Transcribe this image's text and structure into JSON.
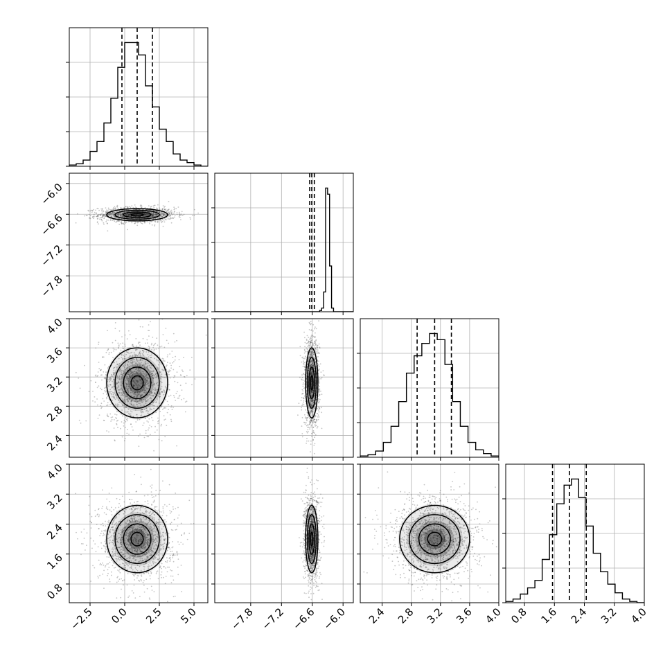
{
  "chart_data": {
    "type": "corner",
    "grid": true,
    "grid_color": "#b0b0b0",
    "line_color": "#000000",
    "contour_fill": "#000000",
    "scatter_color": "#555555",
    "parameters": [
      {
        "range": [
          -4.0,
          6.0
        ],
        "quantiles": [
          -0.2,
          0.9,
          2.0
        ],
        "median": 0.9,
        "sigma": 1.1,
        "ticks": [
          -2.5,
          0.0,
          2.5,
          5.0
        ],
        "tick_labels": [
          "−2.5",
          "0.0",
          "2.5",
          "5.0"
        ]
      },
      {
        "range": [
          -8.5,
          -5.8
        ],
        "quantiles": [
          -6.65,
          -6.61,
          -6.56
        ],
        "median": -6.61,
        "sigma": 0.06,
        "ticks": [
          -7.8,
          -7.2,
          -6.6,
          -6.0
        ],
        "tick_labels": [
          "−7.8",
          "−7.2",
          "−6.6",
          "−6.0"
        ]
      },
      {
        "range": [
          2.1,
          4.0
        ],
        "quantiles": [
          2.88,
          3.12,
          3.35
        ],
        "median": 3.12,
        "sigma": 0.24,
        "ticks": [
          2.4,
          2.8,
          3.2,
          3.6,
          4.0
        ],
        "tick_labels": [
          "2.4",
          "2.8",
          "3.2",
          "3.6",
          "4.0"
        ]
      },
      {
        "range": [
          0.3,
          4.0
        ],
        "quantiles": [
          1.55,
          2.0,
          2.45
        ],
        "median": 2.0,
        "sigma": 0.45,
        "ticks": [
          0.8,
          1.6,
          2.4,
          3.2,
          4.0
        ],
        "tick_labels": [
          "0.8",
          "1.6",
          "2.4",
          "3.2",
          "4.0"
        ]
      }
    ],
    "histograms": [
      {
        "param": 0,
        "counts": [
          1,
          2,
          5,
          12,
          20,
          35,
          55,
          80,
          100,
          100,
          90,
          65,
          48,
          30,
          20,
          10,
          5,
          3,
          1,
          0
        ]
      },
      {
        "param": 1,
        "counts": [
          0,
          0,
          0,
          0,
          0,
          0,
          0,
          0,
          0,
          0,
          0,
          0,
          0,
          0,
          0,
          0,
          0,
          0,
          0,
          0,
          0,
          0,
          0,
          0,
          0,
          0,
          0,
          0,
          0,
          0,
          0,
          0,
          0,
          0,
          0,
          0,
          0,
          0,
          0,
          0,
          0,
          0,
          0,
          0,
          0,
          0,
          0,
          0,
          0,
          0,
          0,
          0,
          0,
          1,
          3,
          16,
          100,
          95,
          37,
          3,
          0,
          0,
          0,
          0,
          0,
          0,
          0,
          0,
          0,
          0
        ]
      },
      {
        "param": 2,
        "counts": [
          1,
          2,
          5,
          12,
          25,
          45,
          68,
          82,
          92,
          100,
          95,
          75,
          45,
          25,
          12,
          6,
          3,
          1
        ]
      },
      {
        "param": 3,
        "counts": [
          1,
          3,
          7,
          12,
          18,
          35,
          55,
          80,
          95,
          100,
          85,
          62,
          40,
          25,
          15,
          8,
          3,
          1,
          0
        ]
      }
    ]
  }
}
